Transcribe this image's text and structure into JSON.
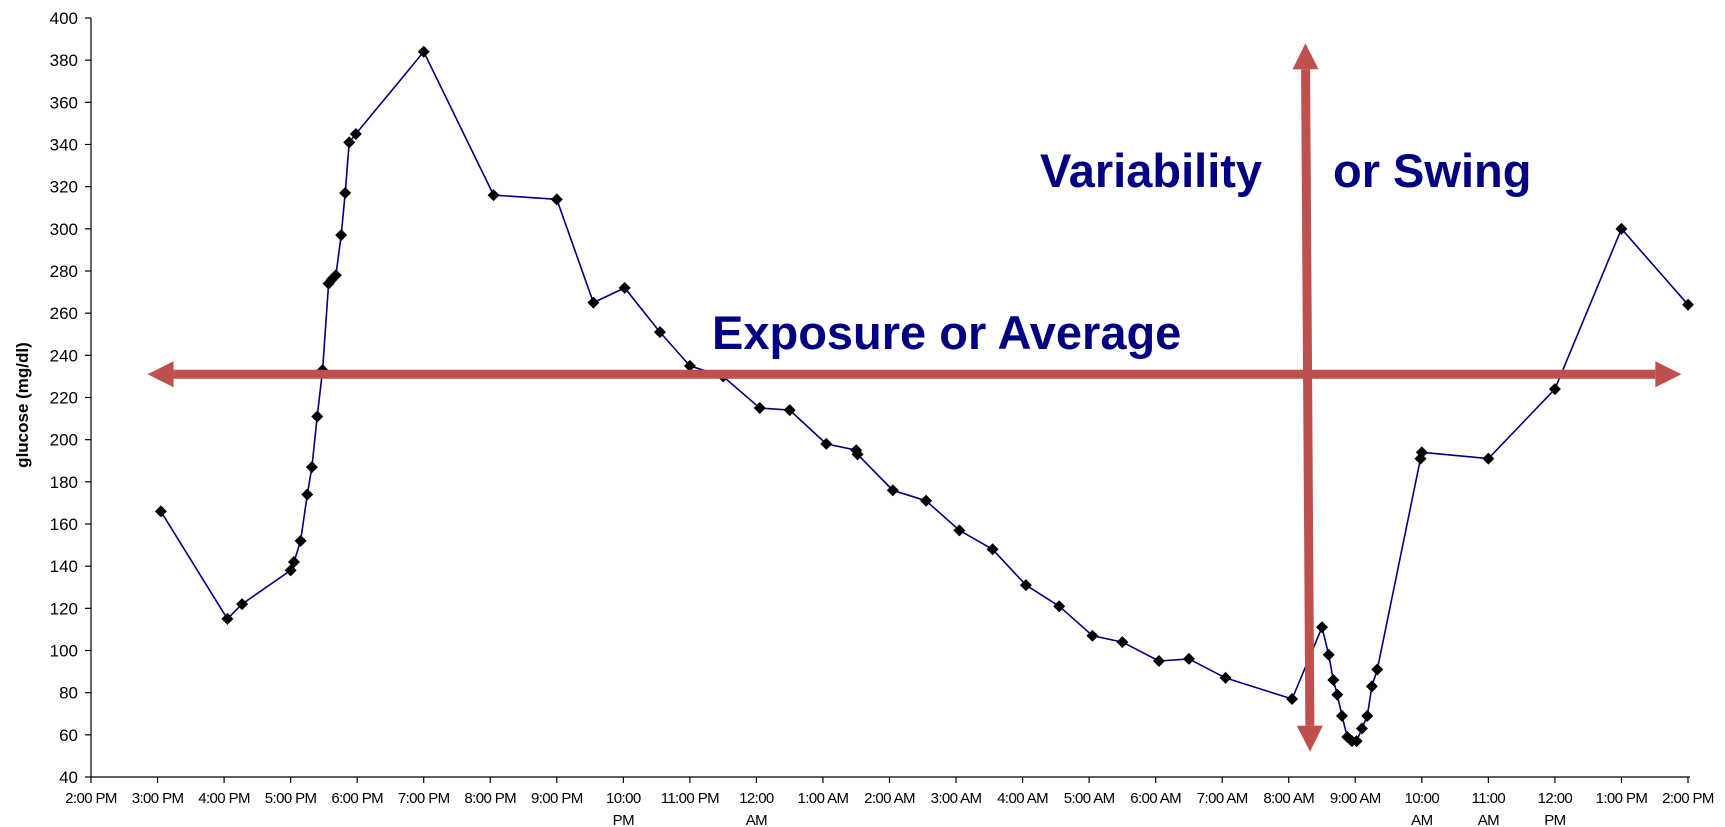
{
  "chart_data": {
    "type": "line",
    "ylabel": "glucose (mg/dl)",
    "ylim": [
      40,
      400
    ],
    "yticks": [
      40,
      60,
      80,
      100,
      120,
      140,
      160,
      180,
      200,
      220,
      240,
      260,
      280,
      300,
      320,
      340,
      360,
      380,
      400
    ],
    "xlim": [
      14,
      38
    ],
    "xticks": [
      {
        "x": 14,
        "lines": [
          "2:00 PM"
        ]
      },
      {
        "x": 15,
        "lines": [
          "3:00 PM"
        ]
      },
      {
        "x": 16,
        "lines": [
          "4:00 PM"
        ]
      },
      {
        "x": 17,
        "lines": [
          "5:00 PM"
        ]
      },
      {
        "x": 18,
        "lines": [
          "6:00 PM"
        ]
      },
      {
        "x": 19,
        "lines": [
          "7:00 PM"
        ]
      },
      {
        "x": 20,
        "lines": [
          "8:00 PM"
        ]
      },
      {
        "x": 21,
        "lines": [
          "9:00 PM"
        ]
      },
      {
        "x": 22,
        "lines": [
          "10:00",
          "PM"
        ]
      },
      {
        "x": 23,
        "lines": [
          "11:00 PM"
        ]
      },
      {
        "x": 24,
        "lines": [
          "12:00",
          "AM"
        ]
      },
      {
        "x": 25,
        "lines": [
          "1:00 AM"
        ]
      },
      {
        "x": 26,
        "lines": [
          "2:00 AM"
        ]
      },
      {
        "x": 27,
        "lines": [
          "3:00 AM"
        ]
      },
      {
        "x": 28,
        "lines": [
          "4:00 AM"
        ]
      },
      {
        "x": 29,
        "lines": [
          "5:00 AM"
        ]
      },
      {
        "x": 30,
        "lines": [
          "6:00 AM"
        ]
      },
      {
        "x": 31,
        "lines": [
          "7:00 AM"
        ]
      },
      {
        "x": 32,
        "lines": [
          "8:00 AM"
        ]
      },
      {
        "x": 33,
        "lines": [
          "9:00 AM"
        ]
      },
      {
        "x": 34,
        "lines": [
          "10:00",
          "AM"
        ]
      },
      {
        "x": 35,
        "lines": [
          "11:00",
          "AM"
        ]
      },
      {
        "x": 36,
        "lines": [
          "12:00",
          "PM"
        ]
      },
      {
        "x": 37,
        "lines": [
          "1:00 PM"
        ]
      },
      {
        "x": 38,
        "lines": [
          "2:00 PM"
        ]
      }
    ],
    "series": [
      {
        "color": "#000080",
        "marker": "diamond",
        "points": [
          [
            15.05,
            166
          ],
          [
            16.05,
            115
          ],
          [
            16.27,
            122
          ],
          [
            17.0,
            138
          ],
          [
            17.05,
            142
          ],
          [
            17.15,
            152
          ],
          [
            17.25,
            174
          ],
          [
            17.32,
            187
          ],
          [
            17.4,
            211
          ],
          [
            17.48,
            233
          ],
          [
            17.57,
            274
          ],
          [
            17.62,
            276
          ],
          [
            17.68,
            278
          ],
          [
            17.76,
            297
          ],
          [
            17.82,
            317
          ],
          [
            17.88,
            341
          ],
          [
            17.98,
            345
          ],
          [
            19.0,
            384
          ],
          [
            20.05,
            316
          ],
          [
            21.0,
            314
          ],
          [
            21.55,
            265
          ],
          [
            22.02,
            272
          ],
          [
            22.55,
            251
          ],
          [
            23.0,
            235
          ],
          [
            23.5,
            230
          ],
          [
            24.05,
            215
          ],
          [
            24.5,
            214
          ],
          [
            25.05,
            198
          ],
          [
            25.5,
            195
          ],
          [
            25.52,
            193
          ],
          [
            26.05,
            176
          ],
          [
            26.55,
            171
          ],
          [
            27.05,
            157
          ],
          [
            27.55,
            148
          ],
          [
            28.05,
            131
          ],
          [
            28.55,
            121
          ],
          [
            29.05,
            107
          ],
          [
            29.5,
            104
          ],
          [
            30.05,
            95
          ],
          [
            30.5,
            96
          ],
          [
            31.05,
            87
          ],
          [
            32.05,
            77
          ],
          [
            32.5,
            111
          ],
          [
            32.6,
            98
          ],
          [
            32.67,
            86
          ],
          [
            32.73,
            79
          ],
          [
            32.8,
            69
          ],
          [
            32.88,
            59
          ],
          [
            32.95,
            57
          ],
          [
            33.02,
            57
          ],
          [
            33.1,
            63
          ],
          [
            33.18,
            69
          ],
          [
            33.25,
            83
          ],
          [
            33.33,
            91
          ],
          [
            33.98,
            191
          ],
          [
            34.0,
            194
          ],
          [
            35.0,
            191
          ],
          [
            36.0,
            224
          ],
          [
            37.0,
            300
          ],
          [
            38.0,
            264
          ]
        ]
      }
    ],
    "annotations": [
      {
        "text": "Exposure or Average",
        "color": "#000080"
      },
      {
        "text": "Variability",
        "color": "#000080"
      },
      {
        "text": "or Swing",
        "color": "#000080"
      }
    ],
    "arrows": [
      {
        "direction": "horizontal",
        "color": "#c0504d",
        "from": [
          14.85,
          231
        ],
        "to": [
          37.9,
          231
        ]
      },
      {
        "direction": "vertical",
        "color": "#c0504d",
        "from": [
          32.25,
          388
        ],
        "to": [
          32.32,
          52
        ]
      }
    ],
    "grid": false,
    "legend": "none"
  }
}
